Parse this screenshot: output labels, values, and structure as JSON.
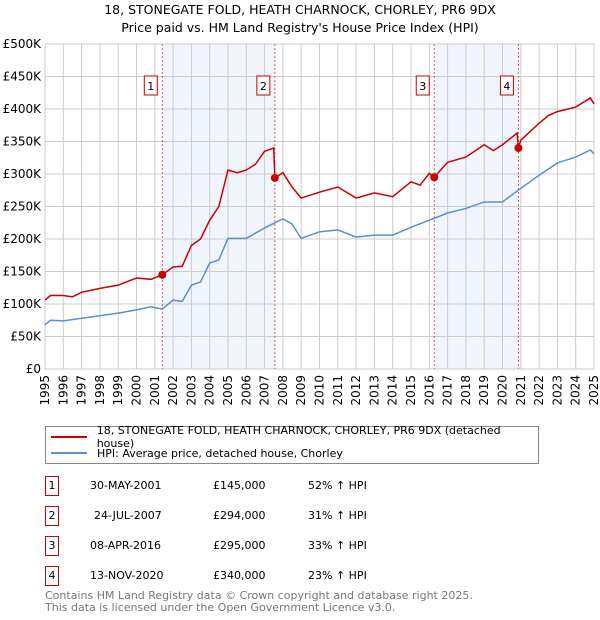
{
  "title": "18, STONEGATE FOLD, HEATH CHARNOCK, CHORLEY, PR6 9DX",
  "subtitle": "Price paid vs. HM Land Registry's House Price Index (HPI)",
  "chart_data": {
    "type": "line",
    "ylim": [
      0,
      500000
    ],
    "xlim": [
      1995,
      2025
    ],
    "yticks": [
      {
        "v": 0,
        "label": "£0"
      },
      {
        "v": 50000,
        "label": "£50K"
      },
      {
        "v": 100000,
        "label": "£100K"
      },
      {
        "v": 150000,
        "label": "£150K"
      },
      {
        "v": 200000,
        "label": "£200K"
      },
      {
        "v": 250000,
        "label": "£250K"
      },
      {
        "v": 300000,
        "label": "£300K"
      },
      {
        "v": 350000,
        "label": "£350K"
      },
      {
        "v": 400000,
        "label": "£400K"
      },
      {
        "v": 450000,
        "label": "£450K"
      },
      {
        "v": 500000,
        "label": "£500K"
      }
    ],
    "xticks": [
      "1995",
      "1996",
      "1997",
      "1998",
      "1999",
      "2000",
      "2001",
      "2002",
      "2003",
      "2004",
      "2005",
      "2006",
      "2007",
      "2008",
      "2009",
      "2010",
      "2011",
      "2012",
      "2013",
      "2014",
      "2015",
      "2016",
      "2017",
      "2018",
      "2019",
      "2020",
      "2021",
      "2022",
      "2023",
      "2024",
      "2025"
    ],
    "grid": true,
    "series": [
      {
        "name": "18, STONEGATE FOLD, HEATH CHARNOCK, CHORLEY, PR6 9DX (detached house)",
        "color": "#cc0000",
        "x": [
          1995,
          1995.3,
          1996,
          1996.5,
          1997,
          1998,
          1999,
          2000,
          2000.8,
          2001.41,
          2002,
          2002.5,
          2003,
          2003.5,
          2004,
          2004.5,
          2005,
          2005.5,
          2006,
          2006.5,
          2007,
          2007.5,
          2007.56,
          2008,
          2008.5,
          2009,
          2010,
          2011,
          2012,
          2013,
          2014,
          2015,
          2015.5,
          2016,
          2016.27,
          2017,
          2018,
          2019,
          2019.5,
          2020,
          2020.8,
          2020.87,
          2021,
          2022,
          2022.5,
          2023,
          2024,
          2024.8,
          2025
        ],
        "y": [
          106000,
          113000,
          113000,
          111000,
          118000,
          124000,
          129000,
          140000,
          138000,
          145000,
          157000,
          158000,
          190000,
          200000,
          229000,
          250000,
          306000,
          302000,
          306000,
          315000,
          335000,
          340000,
          294000,
          302000,
          280000,
          263000,
          272000,
          280000,
          263000,
          271000,
          265000,
          288000,
          283000,
          301000,
          295000,
          318000,
          326000,
          345000,
          336000,
          345000,
          363000,
          340000,
          352000,
          378000,
          390000,
          396000,
          403000,
          417000,
          408000
        ]
      },
      {
        "name": "HPI: Average price, detached house, Chorley",
        "color": "#5b8fd0",
        "x": [
          1995,
          1995.3,
          1996,
          1997,
          1998,
          1999,
          2000,
          2000.8,
          2001.4,
          2002,
          2002.5,
          2003,
          2003.5,
          2004,
          2004.5,
          2005,
          2006,
          2007,
          2008,
          2008.5,
          2009,
          2010,
          2011,
          2012,
          2013,
          2014,
          2015,
          2016,
          2017,
          2018,
          2019,
          2020,
          2021,
          2022,
          2023,
          2024,
          2024.8,
          2025
        ],
        "y": [
          68000,
          75000,
          74000,
          78000,
          82000,
          86000,
          91000,
          96000,
          92000,
          106000,
          104000,
          129000,
          134000,
          163000,
          168000,
          201000,
          201000,
          217000,
          231000,
          223000,
          201000,
          211000,
          214000,
          203000,
          206000,
          206000,
          218000,
          229000,
          240000,
          247000,
          257000,
          257000,
          278000,
          298000,
          317000,
          326000,
          337000,
          331000
        ]
      }
    ],
    "sales": [
      {
        "n": "1",
        "x": 2001.41,
        "y": 145000,
        "date": "30-MAY-2001",
        "price": "£145,000",
        "hpi": "52% ↑ HPI"
      },
      {
        "n": "2",
        "x": 2007.56,
        "y": 294000,
        "date": "24-JUL-2007",
        "price": "£294,000",
        "hpi": "31% ↑ HPI"
      },
      {
        "n": "3",
        "x": 2016.27,
        "y": 295000,
        "date": "08-APR-2016",
        "price": "£295,000",
        "hpi": "33% ↑ HPI"
      },
      {
        "n": "4",
        "x": 2020.87,
        "y": 340000,
        "date": "13-NOV-2020",
        "price": "£340,000",
        "hpi": "23% ↑ HPI"
      }
    ]
  },
  "legend": {
    "red": "18, STONEGATE FOLD, HEATH CHARNOCK, CHORLEY, PR6 9DX (detached house)",
    "blue": "HPI: Average price, detached house, Chorley"
  },
  "footer": {
    "line1": "Contains HM Land Registry data © Crown copyright and database right 2025.",
    "line2": "This data is licensed under the Open Government Licence v3.0."
  }
}
